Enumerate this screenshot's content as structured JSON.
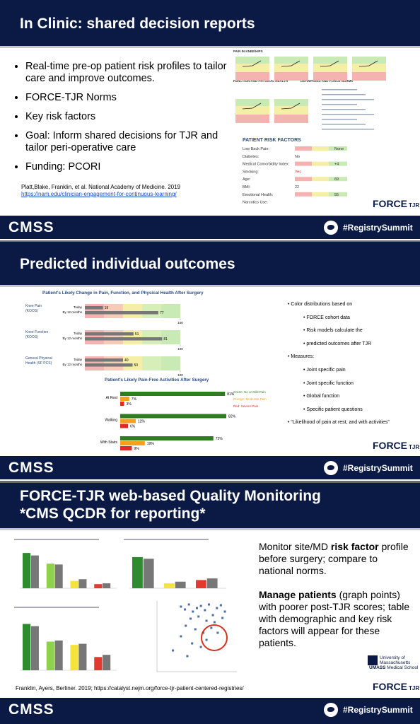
{
  "slides": [
    {
      "title": "In Clinic: shared decision reports",
      "bullets": [
        "Real-time pre-op patient risk profiles to tailor care and improve outcomes.",
        "FORCE-TJR Norms",
        "Key risk factors",
        "Goal: Inform shared decisions for TJR and tailor peri-operative care",
        "Funding: PCORI"
      ],
      "citation": "Platt,Blake, Franklin, et al. National Academy of Medicine. 2019",
      "link": "https://nam.edu/clinician-engagement-for-continuous-learning/",
      "report": {
        "panels": [
          "PAIN IN KNEE/HIPS",
          "FUNCTION AND PHYSICAL HEALTH",
          "DEFINITIONS AND FORCE NORMS"
        ],
        "risk_title": "PATIENT RISK FACTORS",
        "risk_factors": [
          {
            "label": "Low Back Pain:",
            "value": "None"
          },
          {
            "label": "Diabetes:",
            "value": "No"
          },
          {
            "label": "Medical Comorbidity Index:",
            "value": "+4"
          },
          {
            "label": "Smoking:",
            "value": "Yes"
          },
          {
            "label": "Age:",
            "value": "69"
          },
          {
            "label": "BMI:",
            "value": "22"
          },
          {
            "label": "Emotional Health:",
            "value": "55"
          },
          {
            "label": "Narcotics Use:"
          }
        ]
      },
      "logo": {
        "name": "FORCE",
        "sub": "TJR"
      },
      "footer": {
        "org": "CMSS",
        "hashtag": "#RegistrySummit"
      }
    },
    {
      "title": "Predicted individual outcomes",
      "change_chart": {
        "title": "Patient's Likely Change in Pain, Function, and Physical Health After Surgery",
        "today_label": "Today",
        "later_label": "By 12 months",
        "xlim": [
          0,
          100
        ],
        "xticks": [
          100
        ],
        "rows": [
          {
            "label": [
              "Knee Pain",
              "(KOOS)"
            ],
            "values": [
              19,
              77
            ]
          },
          {
            "label": [
              "Knee Function",
              "(KOOS)"
            ],
            "values": [
              51,
              81
            ]
          },
          {
            "label": [
              "General Physical",
              "Health (SF PCS)"
            ],
            "values": [
              40,
              50
            ]
          }
        ]
      },
      "activity_chart": {
        "title": "Patient's Likely Pain-Free Activities After Surgery",
        "xlim": [
          0,
          100
        ],
        "legend": [
          {
            "name": "Green: No or Mild Pain",
            "color": "#2e7d1e"
          },
          {
            "name": "Orange: Moderate Pain",
            "color": "#f2a31b"
          },
          {
            "name": "Red: Severe Pain",
            "color": "#e02b20"
          }
        ],
        "rows": [
          {
            "label": "At Rest",
            "values": [
              81,
              7,
              3
            ],
            "value_labels": [
              "81%",
              "7%",
              "3%"
            ]
          },
          {
            "label": "Walking",
            "values": [
              82,
              12,
              6
            ],
            "value_labels": [
              "82%",
              "12%",
              "6%"
            ]
          },
          {
            "label": "With Stairs",
            "values": [
              72,
              19,
              9
            ],
            "value_labels": [
              "72%",
              "19%",
              "9%"
            ]
          }
        ]
      },
      "notes": [
        {
          "text": "Color distributions based on",
          "sub": [
            "FORCE cohort data",
            "Risk models calculate the",
            "predicted outcomes after TJR"
          ]
        },
        {
          "text": "Measures:",
          "sub": [
            "Joint specific pain",
            "Joint specific function",
            "Global function",
            "Specific patient questions"
          ]
        },
        {
          "text": "“Likelihood of pain at rest, and with activities”"
        }
      ],
      "logo": {
        "name": "FORCE",
        "sub": "TJR"
      },
      "footer": {
        "org": "CMSS",
        "hashtag": "#RegistrySummit"
      }
    },
    {
      "title": [
        "FORCE-TJR web-based Quality Monitoring",
        "*CMS QCDR for reporting*"
      ],
      "paragraphs": [
        [
          {
            "text": "Monitor site/MD "
          },
          {
            "text": "risk factor",
            "bold": true
          },
          {
            "text": " profile before surgery; compare to national norms."
          }
        ],
        [
          {
            "text": "Manage patients",
            "bold": true
          },
          {
            "text": " (graph points) with poorer post-TJR scores; table with demographic and key risk factors will appear for these patients."
          }
        ]
      ],
      "bar_charts": [
        {
          "ylim": [
            0,
            50
          ],
          "groups": [
            {
              "color": "#2e8b2e",
              "values": [
                43,
                40
              ]
            },
            {
              "color": "#8fd14f",
              "values": [
                30,
                29
              ]
            },
            {
              "color": "#f5e33b",
              "values": [
                9,
                11
              ]
            },
            {
              "color": "#e23a2e",
              "values": [
                5,
                6
              ]
            }
          ]
        },
        {
          "ylim": [
            0,
            50
          ],
          "groups": [
            {
              "color": "#2e8b2e",
              "values": [
                38,
                36
              ]
            },
            {
              "color": "#f5e33b",
              "values": [
                6,
                8
              ]
            },
            {
              "color": "#e23a2e",
              "values": [
                10,
                12
              ]
            }
          ]
        },
        {
          "ylim": [
            0,
            50
          ],
          "groups": [
            {
              "color": "#2e8b2e",
              "values": [
                42,
                40
              ]
            },
            {
              "color": "#8fd14f",
              "values": [
                26,
                27
              ]
            },
            {
              "color": "#f5e33b",
              "values": [
                23,
                24
              ]
            },
            {
              "color": "#e23a2e",
              "values": [
                12,
                14
              ]
            }
          ]
        }
      ],
      "scatter": {
        "xlim": [
          0,
          100
        ],
        "ylim": [
          0,
          100
        ],
        "points": [
          [
            30,
            92
          ],
          [
            35,
            88
          ],
          [
            40,
            95
          ],
          [
            45,
            85
          ],
          [
            50,
            90
          ],
          [
            55,
            93
          ],
          [
            60,
            87
          ],
          [
            65,
            95
          ],
          [
            70,
            80
          ],
          [
            75,
            90
          ],
          [
            80,
            94
          ],
          [
            85,
            85
          ],
          [
            42,
            75
          ],
          [
            52,
            78
          ],
          [
            62,
            72
          ],
          [
            72,
            70
          ],
          [
            82,
            76
          ],
          [
            36,
            65
          ],
          [
            48,
            60
          ],
          [
            58,
            55
          ],
          [
            68,
            62
          ],
          [
            30,
            50
          ],
          [
            44,
            40
          ],
          [
            20,
            30
          ],
          [
            55,
            35
          ],
          [
            38,
            22
          ],
          [
            62,
            45
          ],
          [
            76,
            55
          ]
        ]
      },
      "citation": "Franklin, Ayers, Berliner. 2019; https://catalyst.nejm.org/force-tjr-patient-centered-registries/",
      "umass": {
        "line1": "University of",
        "line2": "Massachusetts",
        "line3": "Medical School",
        "abbr": "UMASS"
      },
      "logo": {
        "name": "FORCE",
        "sub": "TJR"
      },
      "footer": {
        "org": "CMSS",
        "hashtag": "#RegistrySummit"
      }
    }
  ]
}
